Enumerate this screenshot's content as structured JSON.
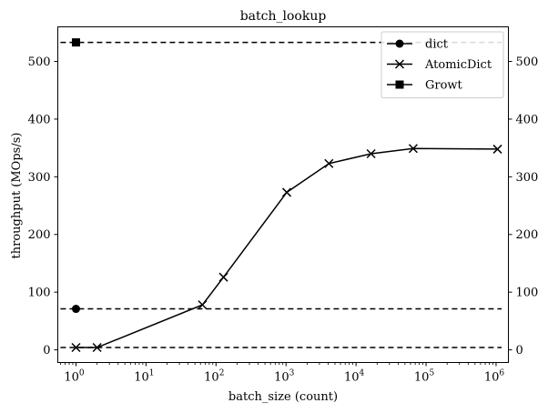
{
  "chart_data": {
    "type": "line",
    "title": "batch_lookup",
    "xlabel": "batch_size (count)",
    "ylabel": "throughput (MOps/s)",
    "x_scale": "log",
    "xlim": [
      0.55,
      1500000
    ],
    "ylim": [
      -22,
      560
    ],
    "yticks": [
      0,
      100,
      200,
      300,
      400,
      500
    ],
    "xtick_labels": [
      {
        "value": 1,
        "base": "10",
        "exp": "0"
      },
      {
        "value": 10,
        "base": "10",
        "exp": "1"
      },
      {
        "value": 100,
        "base": "10",
        "exp": "2"
      },
      {
        "value": 1000,
        "base": "10",
        "exp": "3"
      },
      {
        "value": 10000,
        "base": "10",
        "exp": "4"
      },
      {
        "value": 100000,
        "base": "10",
        "exp": "5"
      },
      {
        "value": 1000000,
        "base": "10",
        "exp": "6"
      }
    ],
    "twin_y_axis": true,
    "grid": false,
    "legend_position": "top-right",
    "series": [
      {
        "name": "dict",
        "marker": "circle",
        "style": "reference-line",
        "points": [
          {
            "x": 1,
            "y": 71
          }
        ],
        "reference_y": 71
      },
      {
        "name": "AtomicDict",
        "marker": "x",
        "style": "solid",
        "points": [
          {
            "x": 1,
            "y": 4
          },
          {
            "x": 2,
            "y": 4
          },
          {
            "x": 64,
            "y": 78
          },
          {
            "x": 128,
            "y": 126
          },
          {
            "x": 1024,
            "y": 273
          },
          {
            "x": 4096,
            "y": 323
          },
          {
            "x": 16384,
            "y": 340
          },
          {
            "x": 65536,
            "y": 349
          },
          {
            "x": 1048576,
            "y": 348
          }
        ],
        "reference_y": 4
      },
      {
        "name": "Growt",
        "marker": "square",
        "style": "reference-line",
        "points": [
          {
            "x": 1,
            "y": 533
          }
        ],
        "reference_y": 533
      }
    ],
    "colors": {
      "line": "#000000",
      "background": "#ffffff"
    }
  }
}
